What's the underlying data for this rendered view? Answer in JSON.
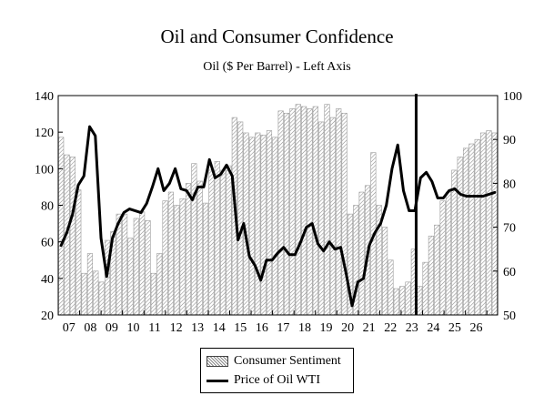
{
  "chart_data": {
    "type": "bar+line",
    "title": "Oil and Consumer Confidence",
    "subtitle": "Oil ($ Per Barrel) - Left Axis",
    "x_tick_labels": [
      "07",
      "08",
      "09",
      "10",
      "11",
      "12",
      "13",
      "14",
      "15",
      "16",
      "17",
      "18",
      "19",
      "20",
      "21",
      "22",
      "23",
      "24",
      "25",
      "26"
    ],
    "left_axis": {
      "min": 20,
      "max": 140,
      "ticks": [
        20,
        40,
        60,
        80,
        100,
        120,
        140
      ]
    },
    "right_axis": {
      "min": 50,
      "max": 100,
      "ticks": [
        50,
        60,
        70,
        80,
        90,
        100
      ]
    },
    "vertical_marker_year": 23.2,
    "legend_placement": "bottom-center",
    "series": [
      {
        "name": "Consumer Sentiment",
        "kind": "bar",
        "axis": "right",
        "values": [
          90.5,
          86.5,
          86,
          78.5,
          59.5,
          64,
          60,
          57.5,
          67,
          69,
          73,
          73,
          67.5,
          72,
          73.5,
          71.5,
          59.5,
          64,
          76,
          78,
          75,
          76.5,
          80,
          84.5,
          80.5,
          75.5,
          83,
          85,
          83,
          84,
          95,
          94,
          91.5,
          90.5,
          91.5,
          91,
          92,
          90.5,
          96.5,
          96,
          97,
          98,
          97.5,
          97,
          97.5,
          94,
          98,
          95,
          97,
          96,
          73,
          75,
          78,
          79.5,
          87,
          75,
          70,
          62.5,
          56,
          56.5,
          57.5,
          65,
          56.5,
          62,
          68,
          70.5,
          76,
          78,
          83,
          86,
          88,
          89,
          90,
          91.5,
          92,
          91.5
        ]
      },
      {
        "name": "Price of Oil WTI",
        "kind": "line",
        "axis": "left",
        "values": [
          58,
          65,
          75,
          91,
          96,
          123,
          118,
          62,
          41,
          62,
          70,
          76,
          78,
          77,
          76,
          81,
          90,
          100,
          88,
          92,
          100,
          89,
          88,
          83,
          90,
          90,
          105,
          95,
          97,
          102,
          96,
          61,
          70,
          52,
          47,
          39,
          50,
          50,
          54,
          57,
          53,
          53,
          60,
          68,
          70,
          59,
          55,
          60,
          56,
          57,
          42,
          25,
          38,
          40,
          58,
          65,
          70,
          80,
          100,
          113,
          88,
          77,
          77,
          95,
          98,
          93,
          84,
          84,
          88,
          89,
          86,
          85,
          85,
          85,
          85,
          86,
          87
        ]
      }
    ]
  }
}
